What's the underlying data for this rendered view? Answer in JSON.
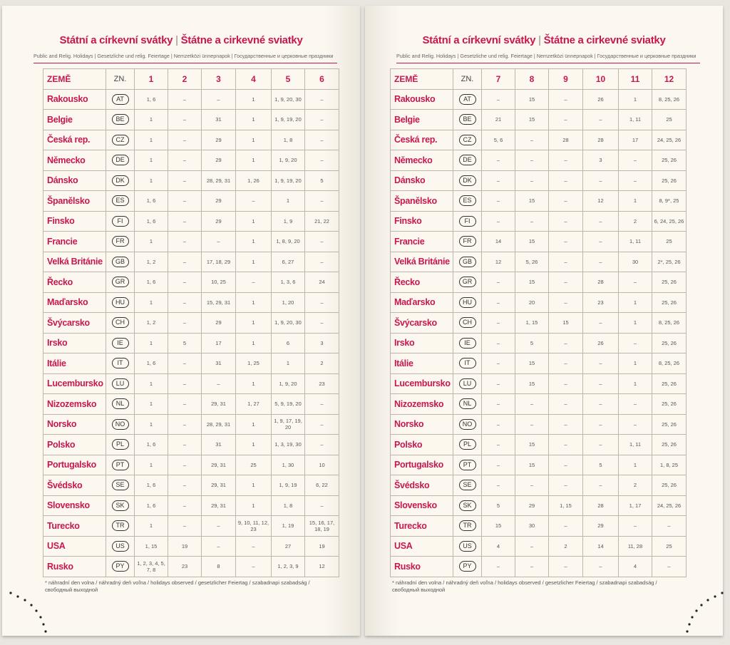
{
  "pages": [
    {
      "title_left": "Státní a církevní svátky",
      "separator": "|",
      "title_right": "Štátne a cirkevné sviatky",
      "subtitle": "Public and Relig. Holidays | Gesetzliche und relig. Feiertage | Nemzetközi ünnepnapok | Государственные и церковные праздники",
      "table": {
        "header": [
          "ZEMĚ",
          "ZN.",
          "1",
          "2",
          "3",
          "4",
          "5",
          "6"
        ],
        "rows": [
          [
            "Rakousko",
            "AT",
            "1, 6",
            "–",
            "–",
            "1",
            "1, 9, 20, 30",
            "–"
          ],
          [
            "Belgie",
            "BE",
            "1",
            "–",
            "31",
            "1",
            "1, 9, 19, 20",
            "–"
          ],
          [
            "Česká rep.",
            "CZ",
            "1",
            "–",
            "29",
            "1",
            "1, 8",
            "–"
          ],
          [
            "Německo",
            "DE",
            "1",
            "–",
            "29",
            "1",
            "1, 9, 20",
            "–"
          ],
          [
            "Dánsko",
            "DK",
            "1",
            "–",
            "28, 29, 31",
            "1, 26",
            "1, 9, 19, 20",
            "5"
          ],
          [
            "Španělsko",
            "ES",
            "1, 6",
            "–",
            "29",
            "–",
            "1",
            "–"
          ],
          [
            "Finsko",
            "FI",
            "1, 6",
            "–",
            "29",
            "1",
            "1, 9",
            "21, 22"
          ],
          [
            "Francie",
            "FR",
            "1",
            "–",
            "–",
            "1",
            "1, 8, 9, 20",
            "–"
          ],
          [
            "Velká Británie",
            "GB",
            "1, 2",
            "–",
            "17, 18, 29",
            "1",
            "6, 27",
            "–"
          ],
          [
            "Řecko",
            "GR",
            "1, 6",
            "–",
            "10, 25",
            "–",
            "1, 3, 6",
            "24"
          ],
          [
            "Maďarsko",
            "HU",
            "1",
            "–",
            "15, 29, 31",
            "1",
            "1, 20",
            "–"
          ],
          [
            "Švýcarsko",
            "CH",
            "1, 2",
            "–",
            "29",
            "1",
            "1, 9, 20, 30",
            "–"
          ],
          [
            "Irsko",
            "IE",
            "1",
            "5",
            "17",
            "1",
            "6",
            "3"
          ],
          [
            "Itálie",
            "IT",
            "1, 6",
            "–",
            "31",
            "1, 25",
            "1",
            "2"
          ],
          [
            "Lucembursko",
            "LU",
            "1",
            "–",
            "–",
            "1",
            "1, 9, 20",
            "23"
          ],
          [
            "Nizozemsko",
            "NL",
            "1",
            "–",
            "29, 31",
            "1, 27",
            "5, 9, 19, 20",
            "–"
          ],
          [
            "Norsko",
            "NO",
            "1",
            "–",
            "28, 29, 31",
            "1",
            "1, 9, 17, 19, 20",
            "–"
          ],
          [
            "Polsko",
            "PL",
            "1, 6",
            "–",
            "31",
            "1",
            "1, 3, 19, 30",
            "–"
          ],
          [
            "Portugalsko",
            "PT",
            "1",
            "–",
            "29, 31",
            "25",
            "1, 30",
            "10"
          ],
          [
            "Švédsko",
            "SE",
            "1, 6",
            "–",
            "29, 31",
            "1",
            "1, 9, 19",
            "6, 22"
          ],
          [
            "Slovensko",
            "SK",
            "1, 6",
            "–",
            "29, 31",
            "1",
            "1, 8",
            "–"
          ],
          [
            "Turecko",
            "TR",
            "1",
            "–",
            "–",
            "9, 10, 11, 12, 23",
            "1, 19",
            "15, 16, 17, 18, 19"
          ],
          [
            "USA",
            "US",
            "1, 15",
            "19",
            "–",
            "–",
            "27",
            "19"
          ],
          [
            "Rusko",
            "PY",
            "1, 2, 3, 4, 5, 7, 8",
            "23",
            "8",
            "–",
            "1, 2, 3, 9",
            "12"
          ]
        ]
      },
      "footnote": "* náhradní den volna / náhradný deň voľna / holidays observed / gesetzlicher Feiertag / szabadnapi szabadság / свободный выходной"
    },
    {
      "title_left": "Státní a církevní svátky",
      "separator": "|",
      "title_right": "Štátne a cirkevné sviatky",
      "subtitle": "Public and Relig. Holidays | Gesetzliche und relig. Feiertage | Nemzetközi ünnepnapok | Государственные и церковные праздники",
      "table": {
        "header": [
          "ZEMĚ",
          "ZN.",
          "7",
          "8",
          "9",
          "10",
          "11",
          "12"
        ],
        "rows": [
          [
            "Rakousko",
            "AT",
            "–",
            "15",
            "–",
            "26",
            "1",
            "8, 25, 26"
          ],
          [
            "Belgie",
            "BE",
            "21",
            "15",
            "–",
            "–",
            "1, 11",
            "25"
          ],
          [
            "Česká rep.",
            "CZ",
            "5, 6",
            "–",
            "28",
            "28",
            "17",
            "24, 25, 26"
          ],
          [
            "Německo",
            "DE",
            "–",
            "–",
            "–",
            "3",
            "–",
            "25, 26"
          ],
          [
            "Dánsko",
            "DK",
            "–",
            "–",
            "–",
            "–",
            "–",
            "25, 26"
          ],
          [
            "Španělsko",
            "ES",
            "–",
            "15",
            "–",
            "12",
            "1",
            "8, 9*, 25"
          ],
          [
            "Finsko",
            "FI",
            "–",
            "–",
            "–",
            "–",
            "2",
            "6, 24, 25, 26"
          ],
          [
            "Francie",
            "FR",
            "14",
            "15",
            "–",
            "–",
            "1, 11",
            "25"
          ],
          [
            "Velká Británie",
            "GB",
            "12",
            "5, 26",
            "–",
            "–",
            "30",
            "2*, 25, 26"
          ],
          [
            "Řecko",
            "GR",
            "–",
            "15",
            "–",
            "28",
            "–",
            "25, 26"
          ],
          [
            "Maďarsko",
            "HU",
            "–",
            "20",
            "–",
            "23",
            "1",
            "25, 26"
          ],
          [
            "Švýcarsko",
            "CH",
            "–",
            "1, 15",
            "15",
            "–",
            "1",
            "8, 25, 26"
          ],
          [
            "Irsko",
            "IE",
            "–",
            "5",
            "–",
            "26",
            "–",
            "25, 26"
          ],
          [
            "Itálie",
            "IT",
            "–",
            "15",
            "–",
            "–",
            "1",
            "8, 25, 26"
          ],
          [
            "Lucembursko",
            "LU",
            "–",
            "15",
            "–",
            "–",
            "1",
            "25, 26"
          ],
          [
            "Nizozemsko",
            "NL",
            "–",
            "–",
            "–",
            "–",
            "–",
            "25, 26"
          ],
          [
            "Norsko",
            "NO",
            "–",
            "–",
            "–",
            "–",
            "–",
            "25, 26"
          ],
          [
            "Polsko",
            "PL",
            "–",
            "15",
            "–",
            "–",
            "1, 11",
            "25, 26"
          ],
          [
            "Portugalsko",
            "PT",
            "–",
            "15",
            "–",
            "5",
            "1",
            "1, 8, 25"
          ],
          [
            "Švédsko",
            "SE",
            "–",
            "–",
            "–",
            "–",
            "2",
            "25, 26"
          ],
          [
            "Slovensko",
            "SK",
            "5",
            "29",
            "1, 15",
            "28",
            "1, 17",
            "24, 25, 26"
          ],
          [
            "Turecko",
            "TR",
            "15",
            "30",
            "–",
            "29",
            "–",
            "–"
          ],
          [
            "USA",
            "US",
            "4",
            "–",
            "2",
            "14",
            "11, 28",
            "25"
          ],
          [
            "Rusko",
            "PY",
            "–",
            "–",
            "–",
            "–",
            "4",
            "–"
          ]
        ]
      },
      "footnote": "* náhradní den volna / náhradný deň voľna / holidays observed / gesetzlicher Feiertag / szabadnapi szabadság / свободный выходной"
    }
  ]
}
